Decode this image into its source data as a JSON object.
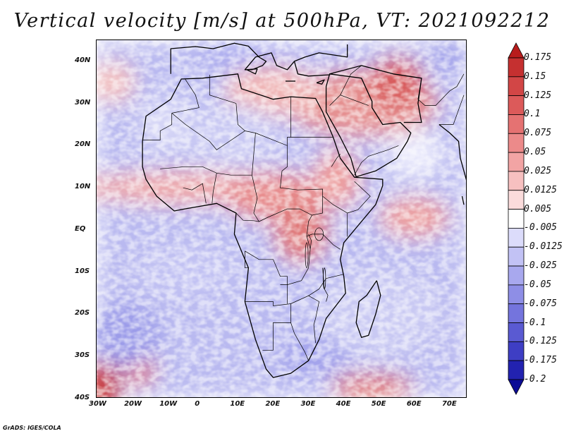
{
  "title": "Vertical velocity [m/s] at 500hPa, VT: 2021092212",
  "footer": "GrADS: IGES/COLA",
  "axes": {
    "lon_labels": [
      "30W",
      "20W",
      "10W",
      "0",
      "10E",
      "20E",
      "30E",
      "40E",
      "50E",
      "60E",
      "70E"
    ],
    "lat_labels": [
      "40N",
      "30N",
      "20N",
      "10N",
      "EQ",
      "10S",
      "20S",
      "30S",
      "40S"
    ],
    "lon_range": [
      -30,
      75
    ],
    "lat_range": [
      -40,
      45
    ]
  },
  "colorbar": {
    "levels": [
      "0.175",
      "0.15",
      "0.125",
      "0.1",
      "0.075",
      "0.05",
      "0.025",
      "0.0125",
      "0.005",
      "-0.005",
      "-0.0125",
      "-0.025",
      "-0.05",
      "-0.075",
      "-0.1",
      "-0.125",
      "-0.175",
      "-0.2"
    ],
    "colors": [
      "#b81c1c",
      "#c53030",
      "#d24646",
      "#dc5a5a",
      "#e57272",
      "#ec8a8a",
      "#f2a4a4",
      "#f7c0c0",
      "#fbdcdc",
      "#ffffff",
      "#dcdcfb",
      "#c2c2f5",
      "#a8a8ee",
      "#8e8ee6",
      "#7474dd",
      "#5a5ad2",
      "#3e3ec4",
      "#2222b0",
      "#0c0c96"
    ]
  },
  "chart_data": {
    "type": "heatmap",
    "variable": "Vertical velocity",
    "units": "m/s",
    "level": "500hPa",
    "valid_time": "2021092212",
    "x_range": [
      -30,
      75
    ],
    "y_range": [
      -40,
      45
    ],
    "contour_levels": [
      -0.2,
      -0.175,
      -0.125,
      -0.1,
      -0.075,
      -0.05,
      -0.025,
      -0.0125,
      -0.005,
      0.005,
      0.0125,
      0.025,
      0.05,
      0.075,
      0.1,
      0.125,
      0.15,
      0.175
    ],
    "regions": [
      {
        "name": "Sahel / West Africa band (~10N)",
        "tendency": "positive",
        "magnitude": 0.04
      },
      {
        "name": "Central Africa / Congo basin",
        "tendency": "positive",
        "magnitude": 0.05
      },
      {
        "name": "Ethiopian Highlands",
        "tendency": "positive",
        "magnitude": 0.04
      },
      {
        "name": "Turkey / Iran / Mediterranean east",
        "tendency": "positive",
        "magnitude": 0.08
      },
      {
        "name": "Southwest corner South Atlantic (~35S,30W)",
        "tendency": "positive",
        "magnitude": 0.15
      },
      {
        "name": "Tropical South Atlantic",
        "tendency": "negative",
        "magnitude": -0.03
      },
      {
        "name": "Southern Indian Ocean",
        "tendency": "negative",
        "magnitude": -0.03
      },
      {
        "name": "Sahara / North Africa",
        "tendency": "negative",
        "magnitude": -0.02
      },
      {
        "name": "Arabian Sea (~5N,60E)",
        "tendency": "positive",
        "magnitude": 0.03
      }
    ]
  }
}
